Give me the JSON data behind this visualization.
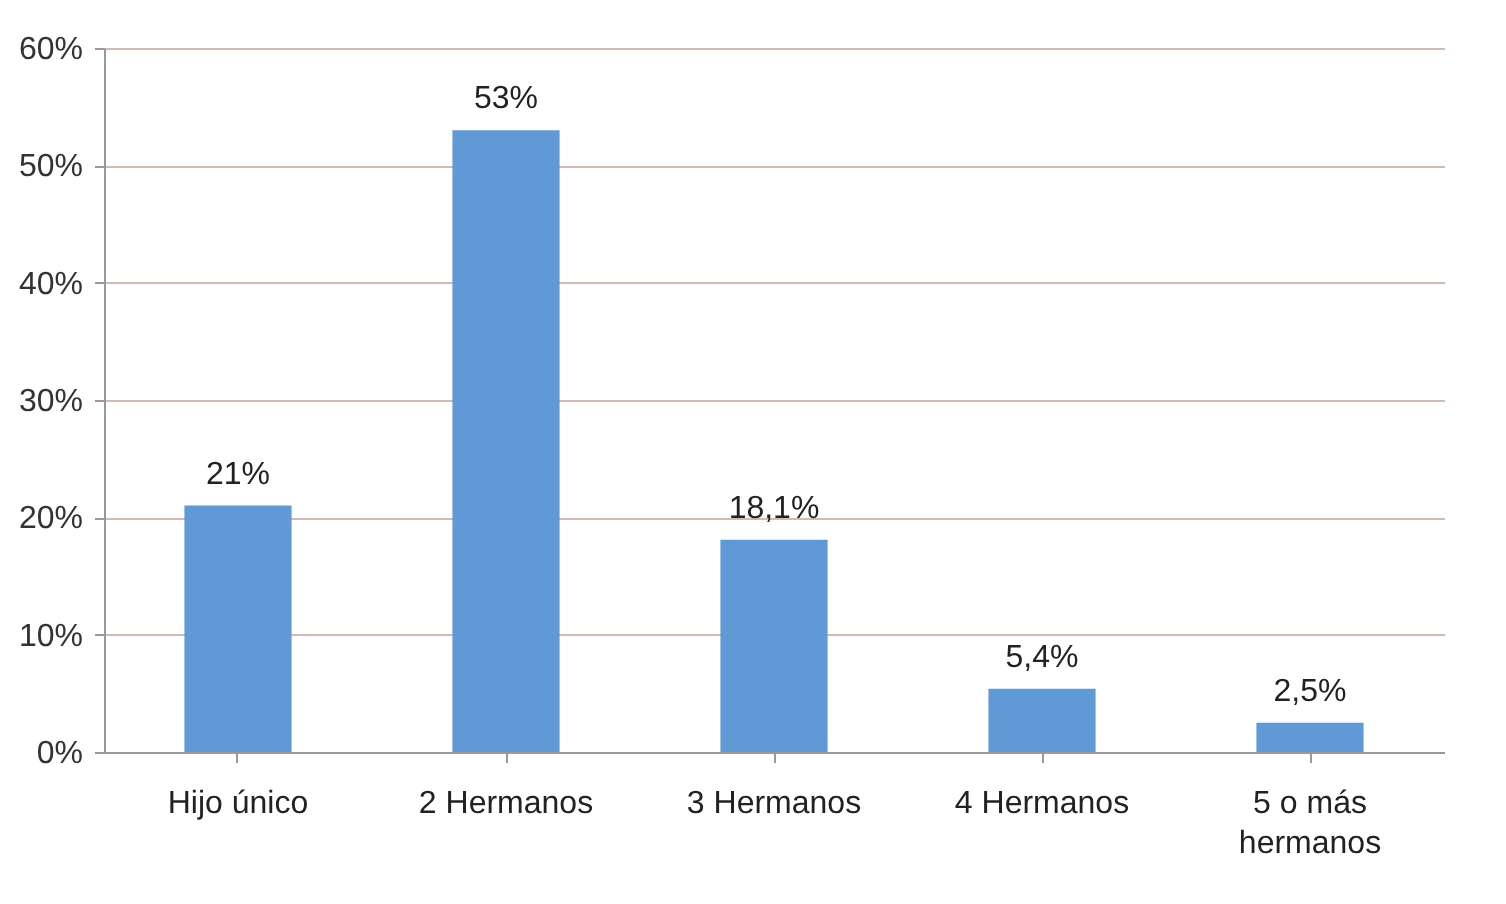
{
  "chart_data": {
    "type": "bar",
    "categories": [
      "Hijo único",
      "2 Hermanos",
      "3 Hermanos",
      "4 Hermanos",
      "5 o más hermanos"
    ],
    "values": [
      21,
      53,
      18.1,
      5.4,
      2.5
    ],
    "value_labels": [
      "21%",
      "53%",
      "18,1%",
      "5,4%",
      "2,5%"
    ],
    "color": "#5f9ad6",
    "ylim": [
      0,
      60
    ],
    "yticks": [
      {
        "value": 0,
        "label": "0%"
      },
      {
        "value": 10,
        "label": "10%"
      },
      {
        "value": 20,
        "label": "20%"
      },
      {
        "value": 30,
        "label": "30%"
      },
      {
        "value": 40,
        "label": "40%"
      },
      {
        "value": 50,
        "label": "50%"
      },
      {
        "value": 60,
        "label": "60%"
      }
    ],
    "grid": "y"
  }
}
